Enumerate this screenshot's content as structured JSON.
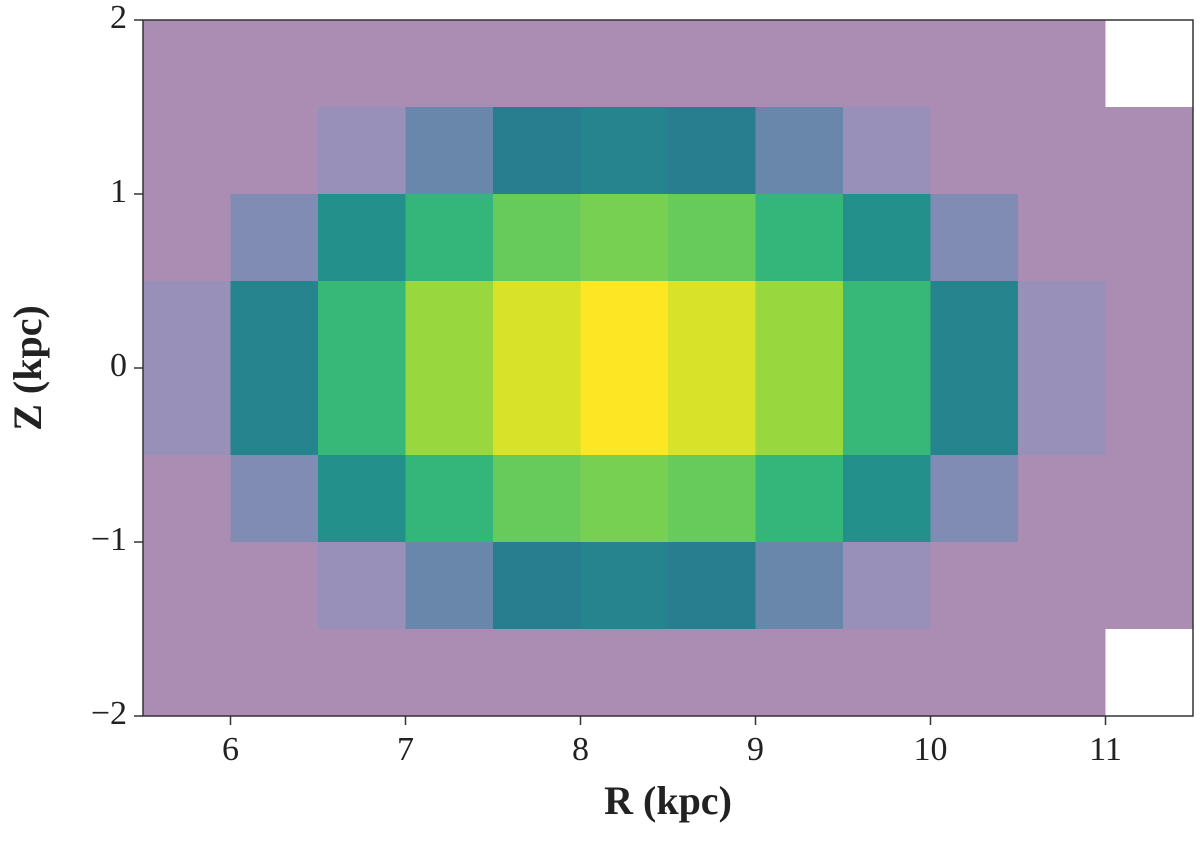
{
  "chart_data": {
    "type": "hist2d",
    "x_label": "R (kpc)",
    "y_label": "Z (kpc)",
    "xbins": [
      5.5,
      6.0,
      6.5,
      7.0,
      7.5,
      8.0,
      8.5,
      9.0,
      9.5,
      10.0,
      10.5,
      11.0,
      11.5
    ],
    "ybins": [
      -2.0,
      -1.5,
      -1.0,
      -0.5,
      0.0,
      0.5,
      1.0,
      1.5,
      2.0
    ],
    "counts": [
      [
        1,
        1,
        1,
        1,
        1,
        1,
        1,
        1,
        1,
        1,
        1,
        0
      ],
      [
        1,
        1,
        2,
        4,
        7,
        8,
        7,
        4,
        2,
        1,
        1,
        1
      ],
      [
        1,
        3,
        10,
        21,
        34,
        39,
        34,
        21,
        10,
        3,
        1,
        1
      ],
      [
        2,
        8,
        22,
        49,
        77,
        100,
        77,
        49,
        22,
        8,
        2,
        1
      ],
      [
        2,
        8,
        22,
        49,
        77,
        100,
        77,
        49,
        22,
        8,
        2,
        1
      ],
      [
        1,
        3,
        10,
        21,
        34,
        39,
        34,
        21,
        10,
        3,
        1,
        1
      ],
      [
        1,
        1,
        2,
        4,
        7,
        8,
        7,
        4,
        2,
        1,
        1,
        1
      ],
      [
        1,
        1,
        1,
        1,
        1,
        1,
        1,
        1,
        1,
        1,
        1,
        0
      ]
    ],
    "colormap": "viridis",
    "log_color": true,
    "xlim": [
      5.5,
      11.5
    ],
    "xticks": [
      6,
      7,
      8,
      9,
      10,
      11
    ],
    "ylim": [
      -2,
      2
    ],
    "yticks": [
      {
        "value": -2,
        "label": "−2"
      },
      {
        "value": -1,
        "label": "−1"
      },
      0,
      1,
      2
    ]
  }
}
